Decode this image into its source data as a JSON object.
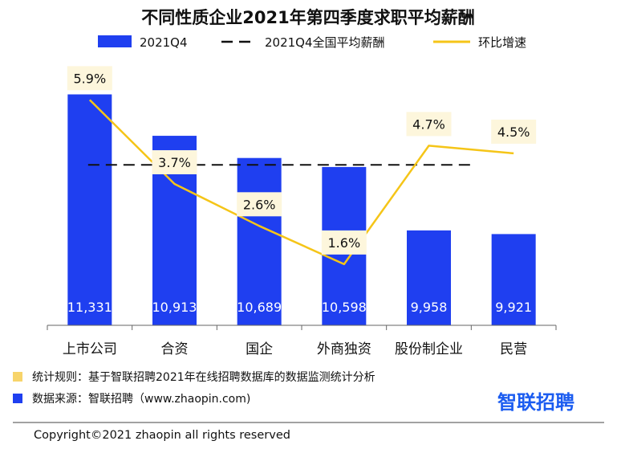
{
  "chart_data": {
    "type": "bar",
    "title": "不同性质企业2021年第四季度求职平均薪酬",
    "categories": [
      "上市公司",
      "合资",
      "国企",
      "外商独资",
      "股份制企业",
      "民营"
    ],
    "series": [
      {
        "name": "2021Q4",
        "type": "bar",
        "values": [
          11331,
          10913,
          10689,
          10598,
          9958,
          9921
        ],
        "labels": [
          "11,331",
          "10,913",
          "10,689",
          "10,598",
          "9,958",
          "9,921"
        ],
        "color": "#1f3ff0"
      },
      {
        "name": "2021Q4全国平均薪酬",
        "type": "reference-line",
        "value": 10620,
        "color": "#111111",
        "dash": "dashed"
      },
      {
        "name": "环比增速",
        "type": "line",
        "axis": "secondary",
        "values": [
          5.9,
          3.7,
          2.6,
          1.6,
          4.7,
          4.5
        ],
        "labels": [
          "5.9%",
          "3.7%",
          "2.6%",
          "1.6%",
          "4.7%",
          "4.5%"
        ],
        "color": "#f5c518"
      }
    ],
    "ylim": [
      9000,
      11700
    ],
    "y2lim": [
      0,
      7
    ],
    "legend_position": "top"
  },
  "footer": {
    "rule_text": "统计规则：基于智联招聘2021年在线招聘数据库的数据监测统计分析",
    "source_text": "数据来源：智联招聘（www.zhaopin.com)",
    "rule_color": "#f7d46a",
    "source_color": "#1f3ff0",
    "brand": "智联招聘",
    "copyright": "Copyright©2021 zhaopin all rights reserved"
  }
}
